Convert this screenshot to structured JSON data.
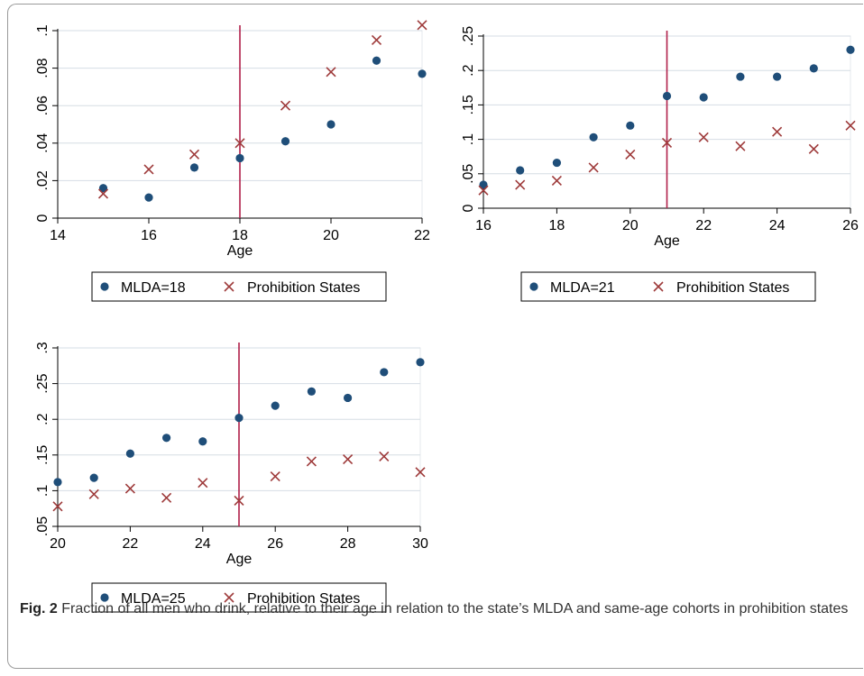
{
  "chart_data": [
    {
      "type": "scatter",
      "xlabel": "Age",
      "ylabel": "",
      "xlim": [
        14,
        22
      ],
      "ylim": [
        0,
        0.1
      ],
      "xticks": [
        14,
        16,
        18,
        20,
        22
      ],
      "xtick_labels": [
        "14",
        "16",
        "18",
        "20",
        "22"
      ],
      "yticks": [
        0,
        0.02,
        0.04,
        0.06,
        0.08,
        0.1
      ],
      "ytick_labels": [
        "0",
        ".02",
        ".04",
        ".06",
        ".08",
        ".1"
      ],
      "vline": 18,
      "grid": true,
      "legend_position": "bottom",
      "series": [
        {
          "name": "MLDA=18",
          "marker": "circle",
          "color": "#1f4e79",
          "x": [
            15,
            16,
            17,
            18,
            19,
            20,
            21,
            22
          ],
          "y": [
            0.016,
            0.011,
            0.027,
            0.032,
            0.041,
            0.05,
            0.084,
            0.077
          ]
        },
        {
          "name": "Prohibition States",
          "marker": "x",
          "color": "#9e3a3a",
          "x": [
            15,
            16,
            17,
            18,
            19,
            20,
            21,
            22
          ],
          "y": [
            0.013,
            0.026,
            0.034,
            0.04,
            0.06,
            0.078,
            0.095,
            0.103
          ]
        }
      ]
    },
    {
      "type": "scatter",
      "xlabel": "Age",
      "ylabel": "",
      "xlim": [
        16,
        26
      ],
      "ylim": [
        0,
        0.25
      ],
      "xticks": [
        16,
        18,
        20,
        22,
        24,
        26
      ],
      "xtick_labels": [
        "16",
        "18",
        "20",
        "22",
        "24",
        "26"
      ],
      "yticks": [
        0,
        0.05,
        0.1,
        0.15,
        0.2,
        0.25
      ],
      "ytick_labels": [
        "0",
        ".05",
        ".1",
        ".15",
        ".2",
        ".25"
      ],
      "vline": 21,
      "grid": true,
      "legend_position": "bottom",
      "series": [
        {
          "name": "MLDA=21",
          "marker": "circle",
          "color": "#1f4e79",
          "x": [
            16,
            17,
            18,
            19,
            20,
            21,
            22,
            23,
            24,
            25,
            26
          ],
          "y": [
            0.034,
            0.055,
            0.066,
            0.103,
            0.12,
            0.163,
            0.161,
            0.191,
            0.191,
            0.203,
            0.23
          ]
        },
        {
          "name": "Prohibition States",
          "marker": "x",
          "color": "#9e3a3a",
          "x": [
            16,
            17,
            18,
            19,
            20,
            21,
            22,
            23,
            24,
            25,
            26
          ],
          "y": [
            0.026,
            0.034,
            0.04,
            0.059,
            0.078,
            0.095,
            0.103,
            0.09,
            0.111,
            0.086,
            0.12
          ]
        }
      ]
    },
    {
      "type": "scatter",
      "xlabel": "Age",
      "ylabel": "",
      "xlim": [
        20,
        30
      ],
      "ylim": [
        0.05,
        0.3
      ],
      "xticks": [
        20,
        22,
        24,
        26,
        28,
        30
      ],
      "xtick_labels": [
        "20",
        "22",
        "24",
        "26",
        "28",
        "30"
      ],
      "yticks": [
        0.05,
        0.1,
        0.15,
        0.2,
        0.25,
        0.3
      ],
      "ytick_labels": [
        ".05",
        ".1",
        ".15",
        ".2",
        ".25",
        ".3"
      ],
      "vline": 25,
      "grid": true,
      "legend_position": "bottom",
      "series": [
        {
          "name": "MLDA=25",
          "marker": "circle",
          "color": "#1f4e79",
          "x": [
            20,
            21,
            22,
            23,
            24,
            25,
            26,
            27,
            28,
            29,
            30
          ],
          "y": [
            0.112,
            0.118,
            0.152,
            0.174,
            0.169,
            0.202,
            0.219,
            0.239,
            0.23,
            0.266,
            0.28
          ]
        },
        {
          "name": "Prohibition States",
          "marker": "x",
          "color": "#9e3a3a",
          "x": [
            20,
            21,
            22,
            23,
            24,
            25,
            26,
            27,
            28,
            29,
            30
          ],
          "y": [
            0.078,
            0.095,
            0.103,
            0.09,
            0.111,
            0.086,
            0.12,
            0.141,
            0.144,
            0.148,
            0.126
          ]
        }
      ]
    }
  ],
  "caption": {
    "label": "Fig. 2",
    "text": "Fraction of all men who drink, relative to their age in relation to the state’s MLDA and same-age cohorts in prohibition states"
  },
  "colors": {
    "grid": "#d6dde4",
    "axis": "#000000",
    "vline": "#b0204a"
  }
}
